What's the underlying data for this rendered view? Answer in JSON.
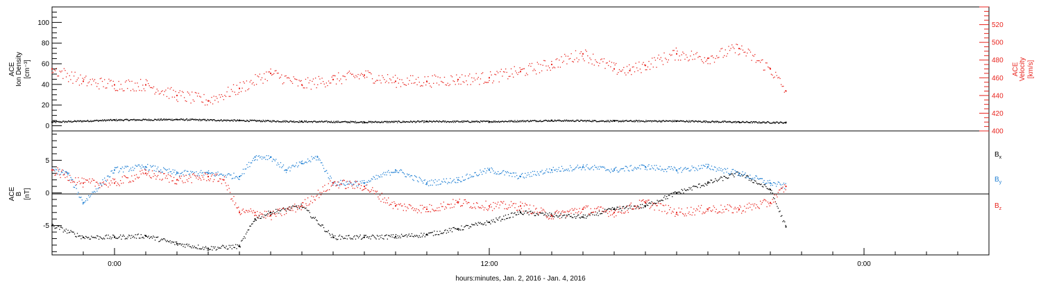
{
  "chart_data": [
    {
      "type": "scatter",
      "panel": "top",
      "ylabel_left": [
        "ACE",
        "Ion Density",
        "[cm⁻³]"
      ],
      "ylabel_right": [
        "ACE",
        "Velocity",
        "[km/s]"
      ],
      "left_axis": {
        "ylim": [
          -5,
          115
        ],
        "ticks": [
          0,
          20,
          40,
          60,
          80,
          100
        ],
        "tick_labels": [
          "0",
          "20",
          "40",
          "60",
          "80",
          "100"
        ]
      },
      "right_axis": {
        "ylim": [
          400,
          540
        ],
        "ticks": [
          400,
          420,
          440,
          460,
          480,
          500,
          520
        ],
        "tick_labels": [
          "400",
          "420",
          "440",
          "460",
          "480",
          "500",
          "520"
        ]
      },
      "series": [
        {
          "axis": "left",
          "color": "#000000",
          "x": [
            -2,
            0,
            2,
            4,
            6,
            8,
            10,
            12,
            14,
            16,
            18,
            20,
            21.5
          ],
          "y": [
            3.5,
            5.5,
            6,
            5,
            4,
            3.5,
            4,
            4,
            5,
            4.5,
            4.5,
            3.5,
            3
          ]
        },
        {
          "axis": "right",
          "color": "#e8221c",
          "x": [
            -2,
            -1,
            0,
            1,
            2,
            3,
            4,
            5,
            6,
            7,
            8,
            9,
            10,
            11,
            12,
            13,
            14,
            15,
            16,
            16.5,
            17,
            18,
            19,
            20,
            21,
            21.5
          ],
          "y": [
            470,
            456,
            452,
            452,
            440,
            434,
            448,
            465,
            452,
            458,
            463,
            456,
            456,
            458,
            460,
            467,
            475,
            487,
            470,
            468,
            474,
            487,
            482,
            493,
            470,
            445
          ]
        }
      ]
    },
    {
      "type": "scatter",
      "panel": "bottom",
      "ylabel": [
        "ACE",
        "B",
        "[nT]"
      ],
      "ylim": [
        -9.5,
        9.5
      ],
      "ticks": [
        -5,
        0,
        5
      ],
      "tick_labels": [
        "-5",
        "0",
        "5"
      ],
      "legend": [
        "B",
        "B",
        "B"
      ],
      "legend_subscripts": [
        "x",
        "y",
        "z"
      ],
      "series": [
        {
          "name": "Bx",
          "color": "#000000",
          "x": [
            -2,
            -1,
            0,
            1,
            2,
            3,
            4,
            4.5,
            5,
            6,
            7,
            8,
            9,
            10,
            11,
            12,
            13,
            14,
            15,
            16,
            17,
            18,
            19,
            20,
            21,
            21.5
          ],
          "y": [
            -5,
            -6.8,
            -6.8,
            -6.6,
            -7.8,
            -8.5,
            -8.2,
            -4,
            -3,
            -2,
            -6.8,
            -6.8,
            -6.7,
            -6.4,
            -5.5,
            -4.5,
            -3,
            -3.4,
            -3.7,
            -2.5,
            -2,
            0,
            1.5,
            3,
            0.5,
            -5.2
          ]
        },
        {
          "name": "By",
          "color": "#1f7fd3",
          "x": [
            -2,
            -1.5,
            -1,
            0,
            1,
            2,
            3,
            4,
            4.5,
            5,
            5.5,
            6,
            6.5,
            7,
            8,
            9,
            10,
            11,
            12,
            13,
            14,
            15,
            16,
            17,
            18,
            19,
            20,
            21,
            21.5
          ],
          "y": [
            3.5,
            3,
            -1.5,
            3.5,
            4,
            3,
            3,
            2.5,
            5.5,
            5.5,
            3.5,
            4.5,
            5.5,
            1.5,
            1.5,
            3.5,
            1.5,
            2,
            3.5,
            2.5,
            3.5,
            4,
            3.5,
            4,
            3.5,
            4,
            3,
            1.5,
            1
          ]
        },
        {
          "name": "Bz",
          "color": "#e8221c",
          "x": [
            -2,
            -1,
            0,
            1,
            2,
            3,
            3.5,
            4,
            4.5,
            5,
            6,
            7,
            8,
            9,
            10,
            11,
            12,
            13,
            14,
            15,
            16,
            17,
            18,
            19,
            20,
            21,
            21.5
          ],
          "y": [
            3.5,
            1.5,
            1.5,
            3,
            2,
            2.5,
            2,
            -3,
            -3,
            -3.5,
            -2,
            1.5,
            1,
            -2,
            -2.5,
            -1.5,
            -2,
            -2,
            -3.5,
            -2.5,
            -3,
            -1.5,
            -3,
            -2.5,
            -2.5,
            -1.5,
            1
          ]
        }
      ]
    }
  ],
  "x_axis": {
    "xlim": [
      -2,
      28
    ],
    "tick_labels": [
      "0:00",
      "12:00",
      "0:00"
    ],
    "tick_values": [
      0,
      12,
      24
    ],
    "caption": "hours:minutes, Jan.  2, 2016 - Jan.  4, 2016"
  }
}
